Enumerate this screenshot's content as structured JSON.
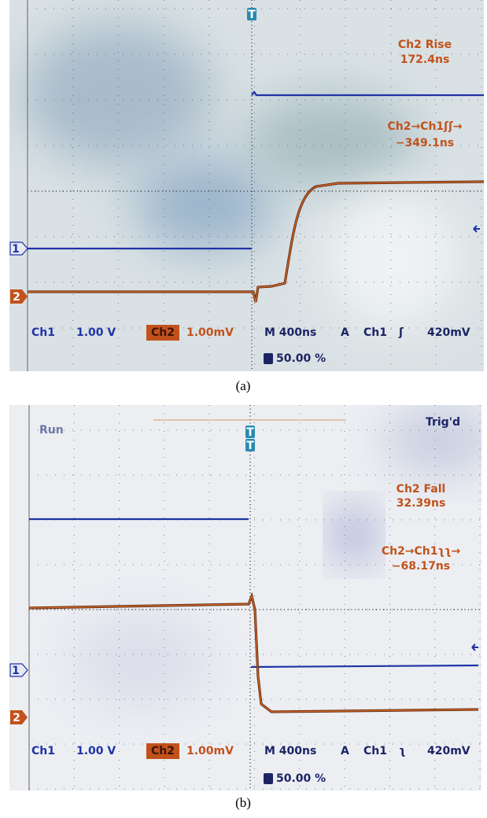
{
  "panels": [
    {
      "caption": "(a)",
      "measurements": [
        {
          "label": "Ch2 Rise",
          "value": "172.4ns"
        },
        {
          "label": "Ch2→Ch1ʃʃ→",
          "value": "−349.1ns"
        }
      ],
      "markers": {
        "ch1": "1",
        "ch2": "2",
        "trigger": "T"
      },
      "readout": {
        "ch1": "Ch1",
        "ch1_scale": "1.00 V",
        "ch2": "Ch2",
        "ch2_scale": "1.00mV",
        "timebase": "M 400ns",
        "trigger_mode": "A",
        "trigger_source": "Ch1",
        "trigger_slope": "ʃ",
        "trigger_level": "420mV",
        "trigger_position": "50.00 %"
      }
    },
    {
      "caption": "(b)",
      "status": "Run",
      "trigger_state": "Trig'd",
      "measurements": [
        {
          "label": "Ch2 Fall",
          "value": "32.39ns"
        },
        {
          "label": "Ch2→Ch1ʅʅ→",
          "value": "−68.17ns"
        }
      ],
      "markers": {
        "ch1": "1",
        "ch2": "2",
        "trigger": "T"
      },
      "readout": {
        "ch1": "Ch1",
        "ch1_scale": "1.00 V",
        "ch2": "Ch2",
        "ch2_scale": "1.00mV",
        "timebase": "M 400ns",
        "trigger_mode": "A",
        "trigger_source": "Ch1",
        "trigger_slope": "ʅ",
        "trigger_level": "420mV",
        "trigger_position": "50.00 %"
      }
    }
  ]
}
